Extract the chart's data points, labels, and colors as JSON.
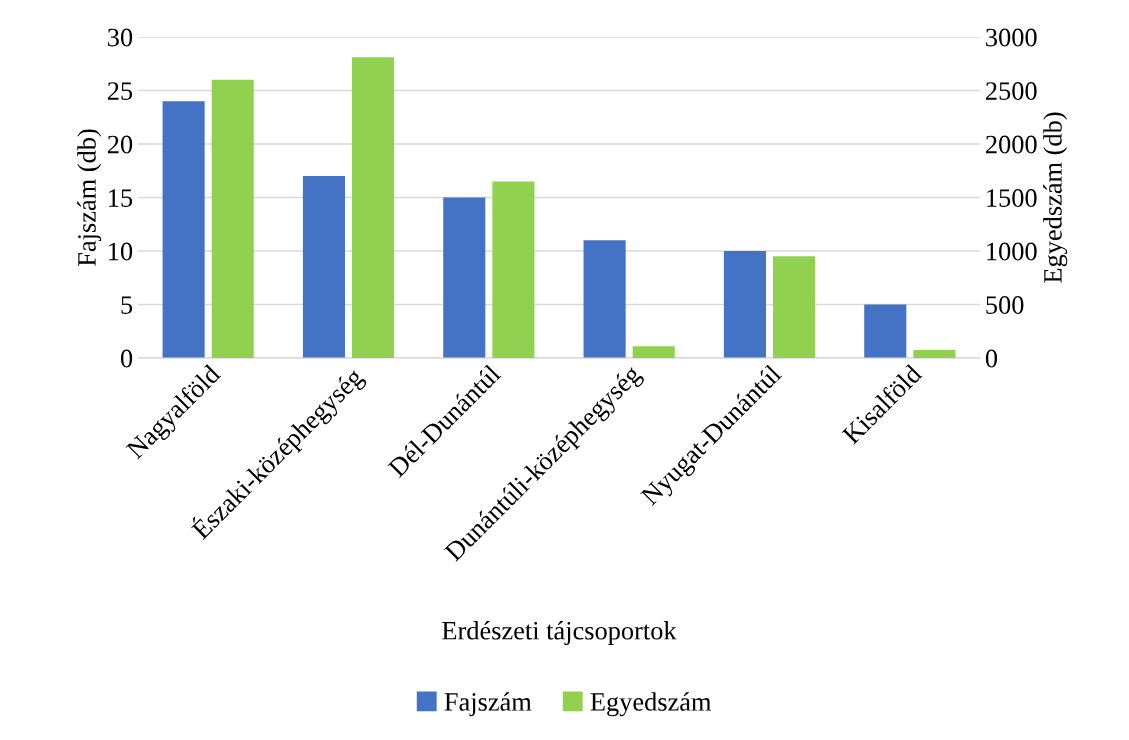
{
  "chart_data": {
    "type": "bar",
    "xlabel": "Erdészeti tájcsoportok",
    "ylabel": "Fajszám (db)",
    "y2label": "Egyedszám (db)",
    "categories": [
      "Nagyalföld",
      "Északi-középhegység",
      "Dél-Dunántúl",
      "Dunántúli-középhegység",
      "Nyugat-Dunántúl",
      "Kisalföld"
    ],
    "series": [
      {
        "name": "Fajszám",
        "color": "#4472c4",
        "values": [
          24,
          17,
          15,
          11,
          10,
          5
        ]
      },
      {
        "name": "Egyedszám",
        "color": "#92d050",
        "axis": "y2",
        "values": [
          2600,
          2810,
          1650,
          110,
          950,
          75
        ]
      }
    ],
    "ylim": [
      0,
      30
    ],
    "yticks": [
      0,
      5,
      10,
      15,
      20,
      25,
      30
    ],
    "y2lim": [
      0,
      3000
    ],
    "y2ticks": [
      0,
      500,
      1000,
      1500,
      2000,
      2500,
      3000
    ],
    "grid": "y",
    "legend": "bottom"
  }
}
